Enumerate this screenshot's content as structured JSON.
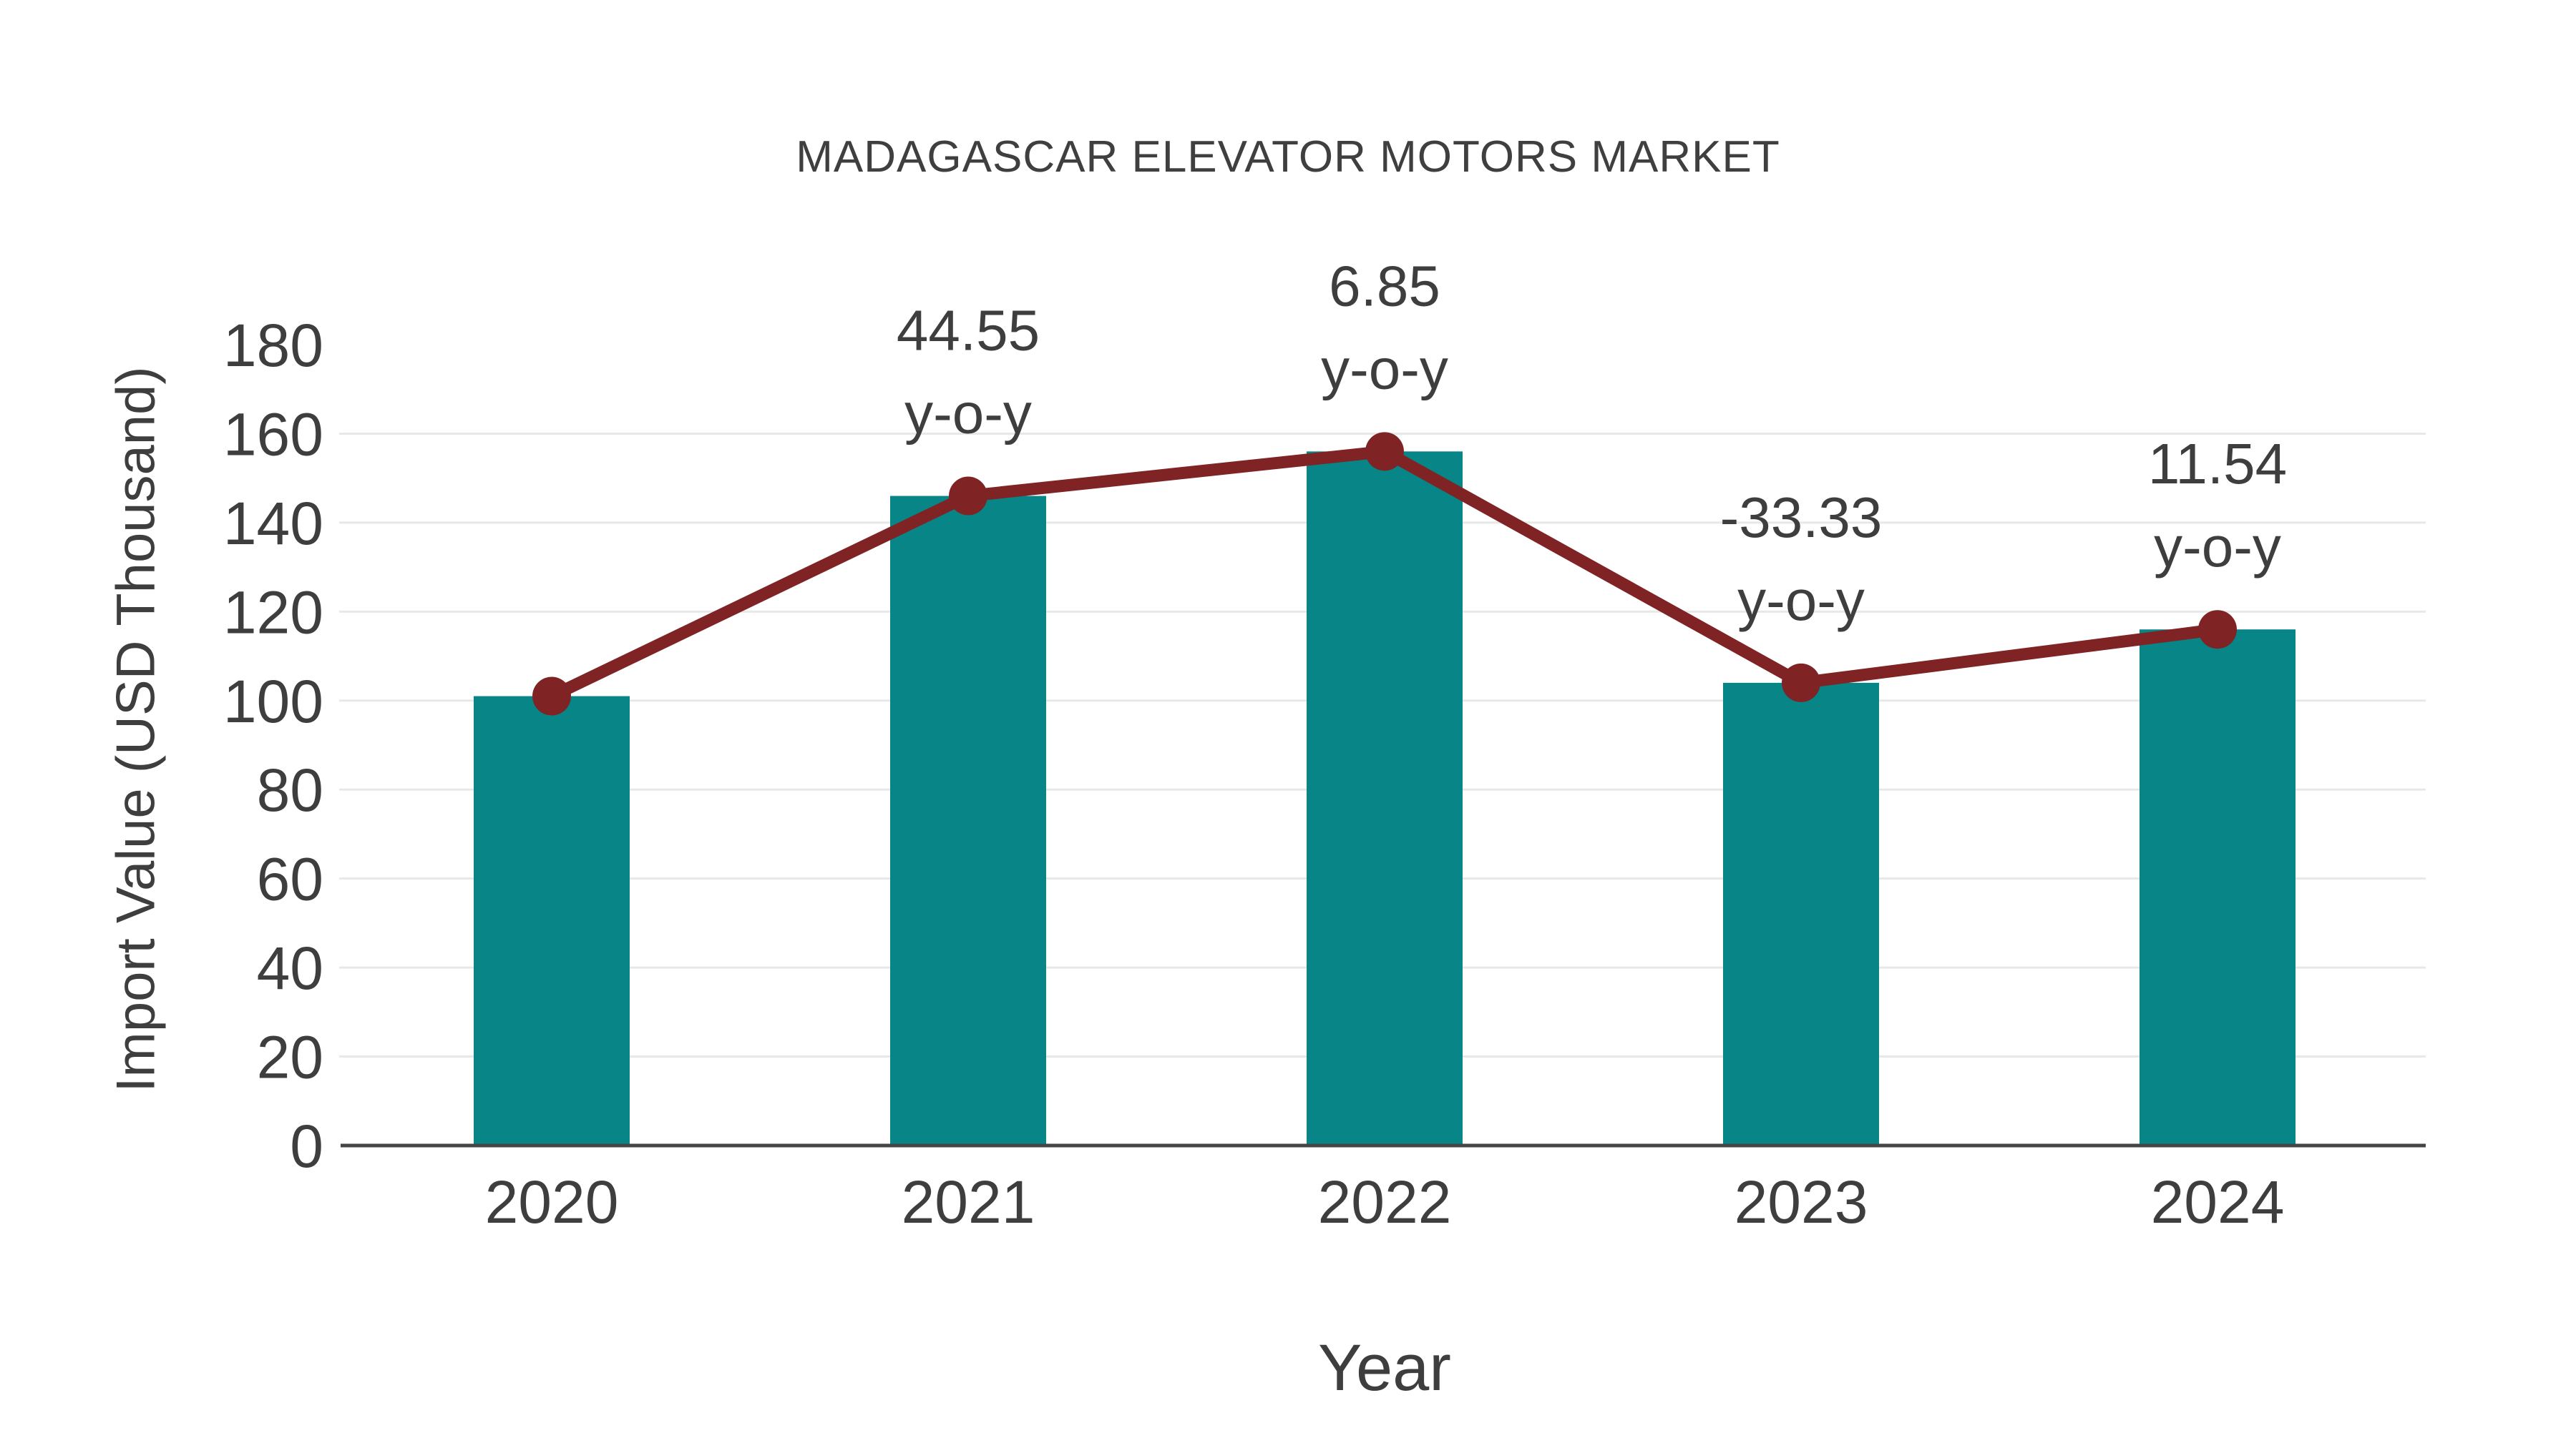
{
  "title": "MADAGASCAR ELEVATOR MOTORS MARKET",
  "colors": {
    "bar": "#088587",
    "line": "#7f2325",
    "text": "#3e3e3e",
    "grid": "#e8e8e8",
    "axis": "#454545",
    "background": "#ffffff"
  },
  "chart_data": {
    "type": "bar",
    "title": "MADAGASCAR ELEVATOR MOTORS MARKET",
    "xlabel": "Year",
    "ylabel": "Import Value (USD Thousand)",
    "categories": [
      "2020",
      "2021",
      "2022",
      "2023",
      "2024"
    ],
    "series": [
      {
        "name": "Import Value (bars)",
        "type": "bar",
        "values": [
          101,
          146,
          156,
          104,
          116
        ]
      },
      {
        "name": "Import Value (trend line)",
        "type": "line",
        "values": [
          101,
          146,
          156,
          104,
          116
        ]
      }
    ],
    "point_labels": [
      {
        "category": "2021",
        "value": "44.55",
        "suffix": "y-o-y"
      },
      {
        "category": "2022",
        "value": "6.85",
        "suffix": "y-o-y"
      },
      {
        "category": "2023",
        "value": "-33.33",
        "suffix": "y-o-y"
      },
      {
        "category": "2024",
        "value": "11.54",
        "suffix": "y-o-y"
      }
    ],
    "ylim": [
      0,
      180
    ],
    "ytick_step": 20,
    "ytick_labels": [
      "0",
      "20",
      "40",
      "60",
      "80",
      "100",
      "120",
      "140",
      "160",
      "180"
    ],
    "grid": true,
    "legend": false
  }
}
